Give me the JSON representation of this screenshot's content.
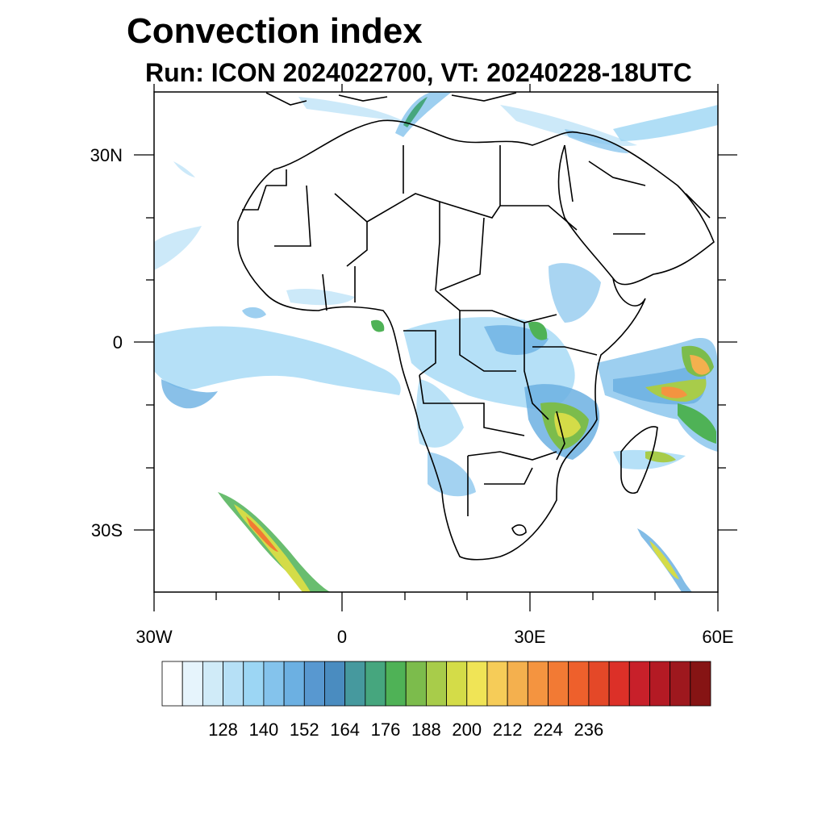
{
  "title": "Convection index",
  "subtitle": "Run: ICON 2024022700,  VT: 20240228-18UTC",
  "map": {
    "lon_range": [
      -30,
      60
    ],
    "lat_range": [
      -40,
      40
    ],
    "lat_labels": [
      {
        "lat": 30,
        "text": "30N"
      },
      {
        "lat": 0,
        "text": "0"
      },
      {
        "lat": -30,
        "text": "30S"
      }
    ],
    "lon_labels": [
      {
        "lon": -30,
        "text": "30W"
      },
      {
        "lon": 0,
        "text": "0"
      },
      {
        "lon": 30,
        "text": "30E"
      },
      {
        "lon": 60,
        "text": "60E"
      }
    ]
  },
  "colorbar": {
    "colors": [
      "#ffffff",
      "#e6f4fc",
      "#d0ebf8",
      "#b6e0f6",
      "#9cd6f4",
      "#84c3ec",
      "#6cb0e2",
      "#5898d0",
      "#4a8cc0",
      "#46999e",
      "#46a67e",
      "#4fb256",
      "#7cbc4c",
      "#a8cc4a",
      "#d4dc48",
      "#f0e456",
      "#f6cc58",
      "#f4b04e",
      "#f49440",
      "#f27a34",
      "#ee602c",
      "#e44828",
      "#dc3028",
      "#c8202a",
      "#b41a24",
      "#9e181e",
      "#861414"
    ],
    "tick_labels": [
      "128",
      "140",
      "152",
      "164",
      "176",
      "188",
      "200",
      "212",
      "224",
      "236"
    ]
  }
}
